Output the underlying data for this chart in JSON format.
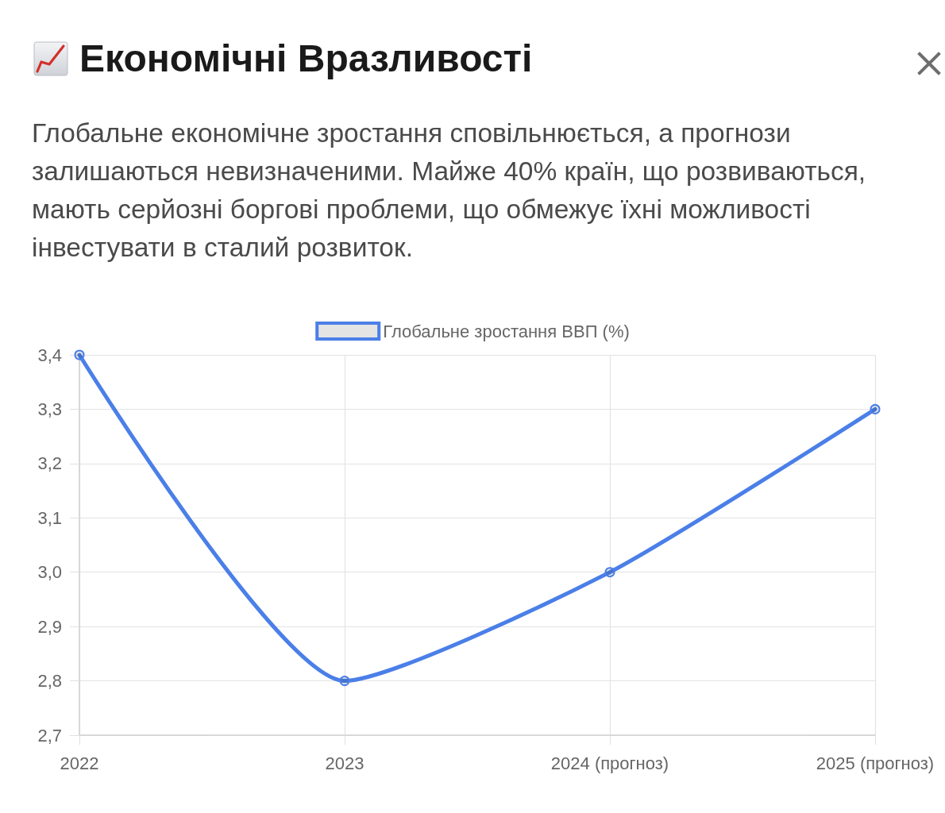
{
  "chart_data": {
    "type": "line",
    "title": "Економічні Вразливості",
    "subtitle": "Глобальне економічне зростання сповільнюється, а прогнози залишаються невизначеними. Майже 40% країн, що розвиваються, мають серйозні боргові проблеми, що обмежує їхні можливості інвестувати в сталий розвиток.",
    "categories": [
      "2022",
      "2023",
      "2024 (прогноз)",
      "2025 (прогноз)"
    ],
    "series": [
      {
        "name": "Глобальне зростання ВВП (%)",
        "color": "#4b7fe8",
        "values": [
          3.4,
          2.8,
          3.0,
          3.3
        ]
      }
    ],
    "ylim": [
      2.7,
      3.4
    ],
    "yticks": [
      {
        "value": 2.7,
        "label": "2,7"
      },
      {
        "value": 2.8,
        "label": "2,8"
      },
      {
        "value": 2.9,
        "label": "2,9"
      },
      {
        "value": 3.0,
        "label": "3,0"
      },
      {
        "value": 3.1,
        "label": "3,1"
      },
      {
        "value": 3.2,
        "label": "3,2"
      },
      {
        "value": 3.3,
        "label": "3,3"
      },
      {
        "value": 3.4,
        "label": "3,4"
      }
    ],
    "grid": true,
    "legend": "top",
    "marker": "circle",
    "line_style": "solid"
  }
}
